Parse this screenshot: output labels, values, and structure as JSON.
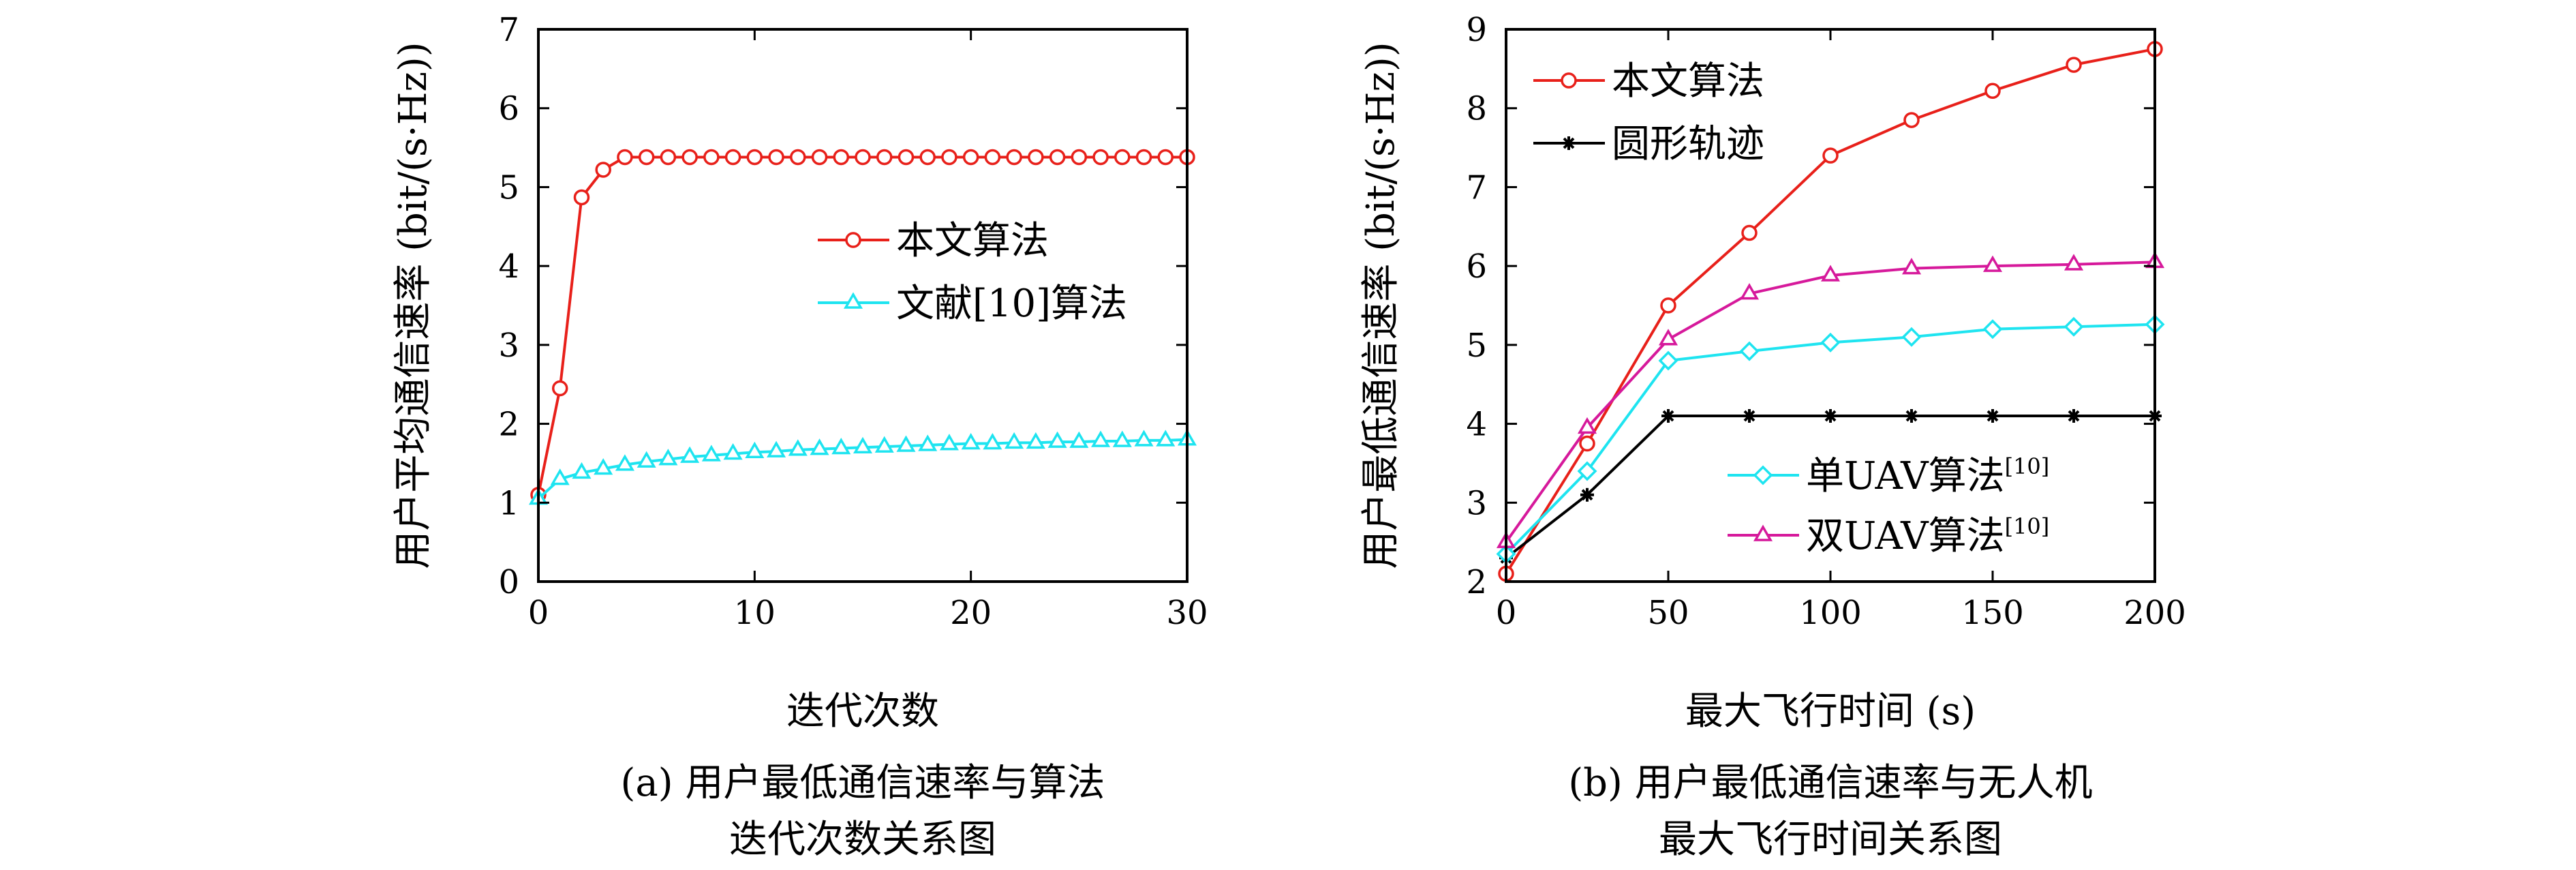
{
  "chart_data": [
    {
      "type": "line",
      "xlabel": "迭代次数",
      "ylabel": "用户平均通信速率 (bit/(s·Hz))",
      "xlim": [
        0,
        30
      ],
      "ylim": [
        0,
        7
      ],
      "xticks": [
        0,
        10,
        20,
        30
      ],
      "yticks": [
        0,
        1,
        2,
        3,
        4,
        5,
        6,
        7
      ],
      "grid": false,
      "legend_position": "center-right",
      "caption": [
        "(a) 用户最低通信速率与算法",
        "迭代次数关系图"
      ],
      "x": [
        0,
        1,
        2,
        3,
        4,
        5,
        6,
        7,
        8,
        9,
        10,
        11,
        12,
        13,
        14,
        15,
        16,
        17,
        18,
        19,
        20,
        21,
        22,
        23,
        24,
        25,
        26,
        27,
        28,
        29,
        30
      ],
      "series": [
        {
          "name": "本文算法",
          "color": "#e8201a",
          "marker": "circle",
          "values": [
            1.1,
            2.45,
            4.87,
            5.22,
            5.38,
            5.38,
            5.38,
            5.38,
            5.38,
            5.38,
            5.38,
            5.38,
            5.38,
            5.38,
            5.38,
            5.38,
            5.38,
            5.38,
            5.38,
            5.38,
            5.38,
            5.38,
            5.38,
            5.38,
            5.38,
            5.38,
            5.38,
            5.38,
            5.38,
            5.38,
            5.38
          ]
        },
        {
          "name": "文献[10]算法",
          "color": "#1ee4f0",
          "marker": "triangle",
          "values": [
            1.05,
            1.3,
            1.38,
            1.43,
            1.48,
            1.52,
            1.55,
            1.58,
            1.6,
            1.62,
            1.64,
            1.65,
            1.67,
            1.68,
            1.69,
            1.7,
            1.71,
            1.72,
            1.73,
            1.74,
            1.75,
            1.75,
            1.76,
            1.76,
            1.77,
            1.77,
            1.78,
            1.78,
            1.79,
            1.79,
            1.8
          ]
        }
      ]
    },
    {
      "type": "line",
      "xlabel": "最大飞行时间 (s)",
      "ylabel": "用户最低通信速率 (bit/(s·Hz))",
      "xlim": [
        0,
        200
      ],
      "ylim": [
        2,
        9
      ],
      "xticks": [
        0,
        50,
        100,
        150,
        200
      ],
      "yticks": [
        2,
        3,
        4,
        5,
        6,
        7,
        8,
        9
      ],
      "grid": false,
      "legend_position": "top-left and lower-right",
      "caption": [
        "(b) 用户最低通信速率与无人机",
        "最大飞行时间关系图"
      ],
      "x": [
        0,
        25,
        50,
        75,
        100,
        125,
        150,
        175,
        200
      ],
      "series": [
        {
          "name": "本文算法",
          "color": "#e8201a",
          "marker": "circle",
          "values": [
            2.1,
            3.75,
            5.5,
            6.42,
            7.4,
            7.85,
            8.22,
            8.55,
            8.75
          ]
        },
        {
          "name": "圆形轨迹",
          "color": "#000000",
          "marker": "star",
          "values": [
            2.3,
            3.1,
            4.1,
            4.1,
            4.1,
            4.1,
            4.1,
            4.1,
            4.1
          ]
        },
        {
          "name": "单UAV算法",
          "name_sup": "[10]",
          "color": "#1ee4f0",
          "marker": "diamond",
          "values": [
            2.35,
            3.4,
            4.8,
            4.92,
            5.03,
            5.1,
            5.2,
            5.23,
            5.26
          ]
        },
        {
          "name": "双UAV算法",
          "name_sup": "[10]",
          "color": "#d6199b",
          "marker": "triangle",
          "values": [
            2.5,
            3.95,
            5.07,
            5.65,
            5.88,
            5.97,
            6.0,
            6.02,
            6.05
          ]
        }
      ]
    }
  ]
}
